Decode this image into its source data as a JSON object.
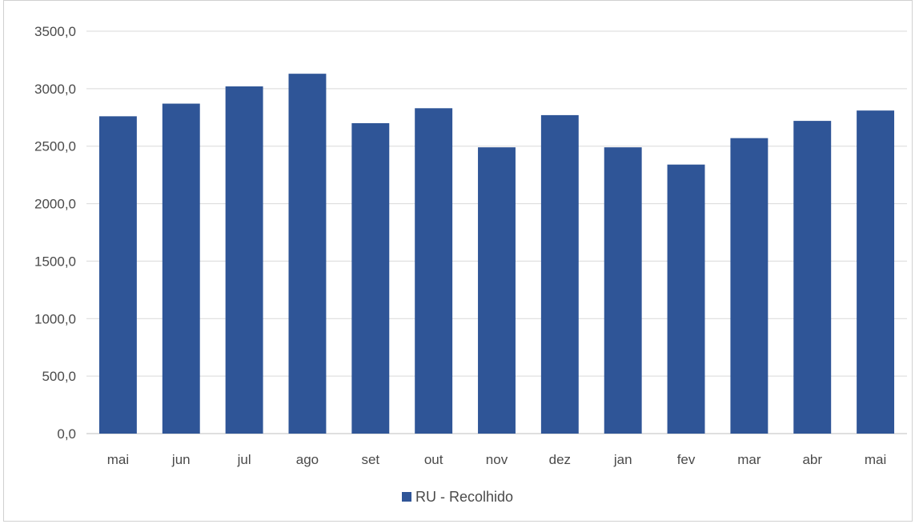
{
  "chart_data": {
    "type": "bar",
    "title": "",
    "xlabel": "",
    "ylabel": "",
    "categories": [
      "mai",
      "jun",
      "jul",
      "ago",
      "set",
      "out",
      "nov",
      "dez",
      "jan",
      "fev",
      "mar",
      "abr",
      "mai"
    ],
    "series": [
      {
        "name": "RU - Recolhido",
        "color": "#2f5597",
        "values": [
          2760,
          2870,
          3020,
          3130,
          2700,
          2830,
          2490,
          2770,
          2490,
          2340,
          2570,
          2720,
          2810
        ]
      }
    ],
    "ylim": [
      0,
      3500
    ],
    "yticks": [
      "0,0",
      "500,0",
      "1000,0",
      "1500,0",
      "2000,0",
      "2500,0",
      "3000,0",
      "3500,0"
    ],
    "grid": true,
    "legend_position": "bottom"
  }
}
